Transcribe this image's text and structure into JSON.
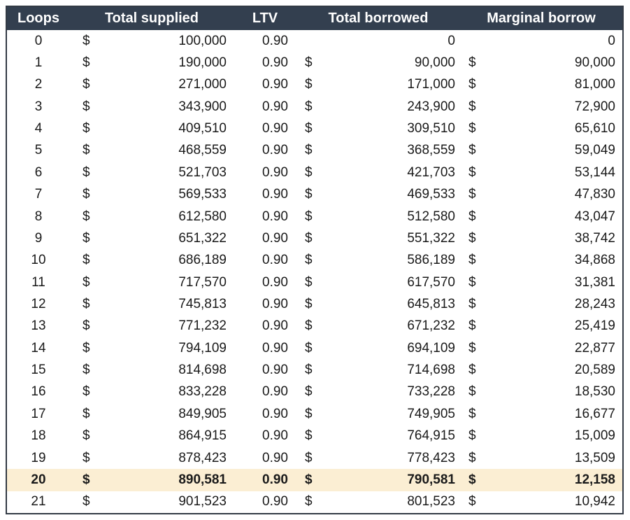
{
  "chart_data": {
    "type": "table",
    "columns": [
      "Loops",
      "Total supplied",
      "LTV",
      "Total borrowed",
      "Marginal borrow"
    ],
    "currency_symbol": "$",
    "highlight_row": 20,
    "rows": [
      {
        "loops": 0,
        "supplied": 100000,
        "ltv": "0.90",
        "borrowed": 0,
        "marginal": 0
      },
      {
        "loops": 1,
        "supplied": 190000,
        "ltv": "0.90",
        "borrowed": 90000,
        "marginal": 90000
      },
      {
        "loops": 2,
        "supplied": 271000,
        "ltv": "0.90",
        "borrowed": 171000,
        "marginal": 81000
      },
      {
        "loops": 3,
        "supplied": 343900,
        "ltv": "0.90",
        "borrowed": 243900,
        "marginal": 72900
      },
      {
        "loops": 4,
        "supplied": 409510,
        "ltv": "0.90",
        "borrowed": 309510,
        "marginal": 65610
      },
      {
        "loops": 5,
        "supplied": 468559,
        "ltv": "0.90",
        "borrowed": 368559,
        "marginal": 59049
      },
      {
        "loops": 6,
        "supplied": 521703,
        "ltv": "0.90",
        "borrowed": 421703,
        "marginal": 53144
      },
      {
        "loops": 7,
        "supplied": 569533,
        "ltv": "0.90",
        "borrowed": 469533,
        "marginal": 47830
      },
      {
        "loops": 8,
        "supplied": 612580,
        "ltv": "0.90",
        "borrowed": 512580,
        "marginal": 43047
      },
      {
        "loops": 9,
        "supplied": 651322,
        "ltv": "0.90",
        "borrowed": 551322,
        "marginal": 38742
      },
      {
        "loops": 10,
        "supplied": 686189,
        "ltv": "0.90",
        "borrowed": 586189,
        "marginal": 34868
      },
      {
        "loops": 11,
        "supplied": 717570,
        "ltv": "0.90",
        "borrowed": 617570,
        "marginal": 31381
      },
      {
        "loops": 12,
        "supplied": 745813,
        "ltv": "0.90",
        "borrowed": 645813,
        "marginal": 28243
      },
      {
        "loops": 13,
        "supplied": 771232,
        "ltv": "0.90",
        "borrowed": 671232,
        "marginal": 25419
      },
      {
        "loops": 14,
        "supplied": 794109,
        "ltv": "0.90",
        "borrowed": 694109,
        "marginal": 22877
      },
      {
        "loops": 15,
        "supplied": 814698,
        "ltv": "0.90",
        "borrowed": 714698,
        "marginal": 20589
      },
      {
        "loops": 16,
        "supplied": 833228,
        "ltv": "0.90",
        "borrowed": 733228,
        "marginal": 18530
      },
      {
        "loops": 17,
        "supplied": 849905,
        "ltv": "0.90",
        "borrowed": 749905,
        "marginal": 16677
      },
      {
        "loops": 18,
        "supplied": 864915,
        "ltv": "0.90",
        "borrowed": 764915,
        "marginal": 15009
      },
      {
        "loops": 19,
        "supplied": 878423,
        "ltv": "0.90",
        "borrowed": 778423,
        "marginal": 13509
      },
      {
        "loops": 20,
        "supplied": 890581,
        "ltv": "0.90",
        "borrowed": 790581,
        "marginal": 12158
      },
      {
        "loops": 21,
        "supplied": 901523,
        "ltv": "0.90",
        "borrowed": 801523,
        "marginal": 10942
      }
    ]
  },
  "colors": {
    "header_bg": "#333F4F",
    "header_text": "#FFFFFF",
    "highlight_bg": "#FBEED3",
    "body_text": "#1A1A1A",
    "body_bg": "#FFFFFF",
    "border": "#333A45"
  }
}
